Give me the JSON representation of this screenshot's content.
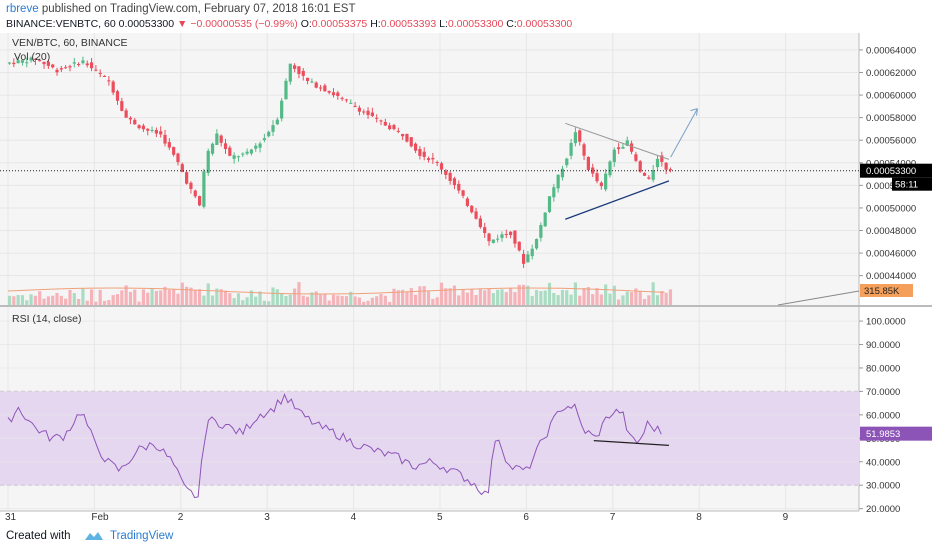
{
  "header": {
    "user": "rbreve",
    "published": "published on TradingView.com, February 07, 2018 16:01 EST",
    "symbol": "BINANCE:VENBTC, 60",
    "last": "0.00053300",
    "change": "−0.00000535 (−0.99%)",
    "o_label": "O:",
    "o_val": "0.00053375",
    "h_label": "H:",
    "h_val": "0.00053393",
    "l_label": "L:",
    "l_val": "0.00053300",
    "c_label": "C:",
    "c_val": "0.00053300"
  },
  "footer": {
    "created": "Created with",
    "brand": "TradingView"
  },
  "chart_data": [
    {
      "type": "candlestick",
      "title": "VEN/BTC, 60, BINANCE",
      "volume_label": "Vol (20)",
      "ylim": [
        0.000414,
        0.000655
      ],
      "y_ticks": [
        "0.00064000",
        "0.00062000",
        "0.00060000",
        "0.00058000",
        "0.00056000",
        "0.00054000",
        "0.00052000",
        "0.00050000",
        "0.00048000",
        "0.00046000",
        "0.00044000"
      ],
      "y_tick_values": [
        0.00064,
        0.00062,
        0.0006,
        0.00058,
        0.00056,
        0.00054,
        0.00052,
        0.0005,
        0.00048,
        0.00046,
        0.00044
      ],
      "x_ticks": [
        "31",
        "Feb",
        "2",
        "3",
        "4",
        "5",
        "6",
        "7",
        "8",
        "9"
      ],
      "x_tick_days": [
        0,
        1,
        2,
        3,
        4,
        5,
        6,
        7,
        8,
        9
      ],
      "price_path": [
        [
          0.0,
          0.000628
        ],
        [
          0.35,
          0.000632
        ],
        [
          0.6,
          0.000622
        ],
        [
          0.9,
          0.00063
        ],
        [
          1.2,
          0.000612
        ],
        [
          1.4,
          0.00058
        ],
        [
          1.6,
          0.00057
        ],
        [
          1.8,
          0.000565
        ],
        [
          2.0,
          0.00054
        ],
        [
          2.12,
          0.00052
        ],
        [
          2.25,
          0.000502
        ],
        [
          2.32,
          0.000545
        ],
        [
          2.45,
          0.000565
        ],
        [
          2.6,
          0.000545
        ],
        [
          2.8,
          0.000548
        ],
        [
          3.0,
          0.000562
        ],
        [
          3.15,
          0.00058
        ],
        [
          3.3,
          0.000628
        ],
        [
          3.5,
          0.000612
        ],
        [
          3.7,
          0.000605
        ],
        [
          4.0,
          0.000592
        ],
        [
          4.3,
          0.000578
        ],
        [
          4.6,
          0.000565
        ],
        [
          4.8,
          0.000548
        ],
        [
          5.0,
          0.00054
        ],
        [
          5.2,
          0.00052
        ],
        [
          5.45,
          0.000492
        ],
        [
          5.6,
          0.00047
        ],
        [
          5.75,
          0.000476
        ],
        [
          5.85,
          0.000478
        ],
        [
          6.0,
          0.000452
        ],
        [
          6.15,
          0.000472
        ],
        [
          6.3,
          0.00051
        ],
        [
          6.5,
          0.000545
        ],
        [
          6.6,
          0.000568
        ],
        [
          6.75,
          0.000535
        ],
        [
          6.9,
          0.000518
        ],
        [
          7.05,
          0.000552
        ],
        [
          7.2,
          0.000558
        ],
        [
          7.35,
          0.000532
        ],
        [
          7.45,
          0.000524
        ],
        [
          7.55,
          0.000545
        ],
        [
          7.65,
          0.000535
        ]
      ],
      "last_price": "0.00053300",
      "countdown": "58:11",
      "volume_last": "315.85K",
      "annotations": {
        "upper_trendline": [
          [
            6.45,
            0.000575
          ],
          [
            7.65,
            0.000543
          ]
        ],
        "lower_trendline": [
          [
            6.45,
            0.00049
          ],
          [
            7.65,
            0.000524
          ]
        ],
        "arrow": [
          [
            7.67,
            0.000545
          ],
          [
            7.98,
            0.000588
          ]
        ]
      }
    },
    {
      "type": "line",
      "title": "RSI (14, close)",
      "ylim": [
        19.0,
        106.0
      ],
      "y_ticks": [
        "100.0000",
        "90.0000",
        "80.0000",
        "70.0000",
        "60.0000",
        "50.0000",
        "40.0000",
        "30.0000",
        "20.0000"
      ],
      "y_tick_values": [
        100,
        90,
        80,
        70,
        60,
        50,
        40,
        30,
        20
      ],
      "band": [
        30,
        70
      ],
      "last_value": "51.9853",
      "rsi_path": [
        [
          0.0,
          57
        ],
        [
          0.12,
          63
        ],
        [
          0.3,
          55
        ],
        [
          0.5,
          50
        ],
        [
          0.65,
          51
        ],
        [
          0.85,
          62
        ],
        [
          1.0,
          48
        ],
        [
          1.15,
          40
        ],
        [
          1.3,
          36
        ],
        [
          1.5,
          45
        ],
        [
          1.7,
          48
        ],
        [
          1.9,
          40
        ],
        [
          2.05,
          28
        ],
        [
          2.2,
          25
        ],
        [
          2.3,
          58
        ],
        [
          2.5,
          56
        ],
        [
          2.7,
          52
        ],
        [
          2.9,
          60
        ],
        [
          3.05,
          62
        ],
        [
          3.2,
          68
        ],
        [
          3.4,
          60
        ],
        [
          3.6,
          55
        ],
        [
          3.8,
          52
        ],
        [
          4.0,
          48
        ],
        [
          4.15,
          46
        ],
        [
          4.3,
          44
        ],
        [
          4.5,
          42
        ],
        [
          4.7,
          38
        ],
        [
          4.9,
          40
        ],
        [
          5.1,
          37
        ],
        [
          5.3,
          33
        ],
        [
          5.45,
          29
        ],
        [
          5.55,
          25
        ],
        [
          5.65,
          53
        ],
        [
          5.8,
          38
        ],
        [
          6.0,
          36
        ],
        [
          6.2,
          50
        ],
        [
          6.4,
          63
        ],
        [
          6.55,
          64
        ],
        [
          6.65,
          54
        ],
        [
          6.8,
          50
        ],
        [
          6.95,
          60
        ],
        [
          7.1,
          62
        ],
        [
          7.2,
          50
        ],
        [
          7.3,
          48
        ],
        [
          7.4,
          56
        ],
        [
          7.5,
          54
        ],
        [
          7.6,
          52
        ]
      ],
      "annotations": {
        "trendline": [
          [
            6.78,
            49
          ],
          [
            7.65,
            47
          ]
        ]
      }
    }
  ]
}
